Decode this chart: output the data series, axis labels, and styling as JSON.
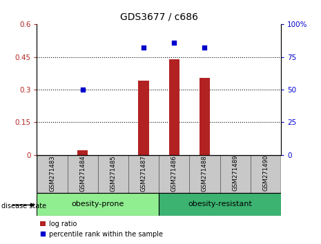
{
  "title": "GDS3677 / c686",
  "samples": [
    "GSM271483",
    "GSM271484",
    "GSM271485",
    "GSM271487",
    "GSM271486",
    "GSM271488",
    "GSM271489",
    "GSM271490"
  ],
  "log_ratio": [
    0.0,
    0.02,
    0.0,
    0.34,
    0.44,
    0.355,
    0.0,
    0.0
  ],
  "percentile_rank": [
    null,
    50,
    null,
    82,
    86,
    82,
    null,
    null
  ],
  "left_ylim": [
    0,
    0.6
  ],
  "right_ylim": [
    0,
    100
  ],
  "left_yticks": [
    0,
    0.15,
    0.3,
    0.45,
    0.6
  ],
  "left_ytick_labels": [
    "0",
    "0.15",
    "0.3",
    "0.45",
    "0.6"
  ],
  "right_yticks": [
    0,
    25,
    50,
    75,
    100
  ],
  "right_ytick_labels": [
    "0",
    "25",
    "50",
    "75",
    "100%"
  ],
  "dotted_lines": [
    0.15,
    0.3,
    0.45
  ],
  "bar_color": "#b22222",
  "scatter_color": "#0000cd",
  "group1_label": "obesity-prone",
  "group2_label": "obesity-resistant",
  "group1_indices": [
    0,
    1,
    2,
    3
  ],
  "group2_indices": [
    4,
    5,
    6,
    7
  ],
  "group1_bg": "#90ee90",
  "group2_bg": "#3cb371",
  "sample_bg": "#c8c8c8",
  "legend_log_ratio": "log ratio",
  "legend_percentile": "percentile rank within the sample",
  "disease_state_label": "disease state"
}
